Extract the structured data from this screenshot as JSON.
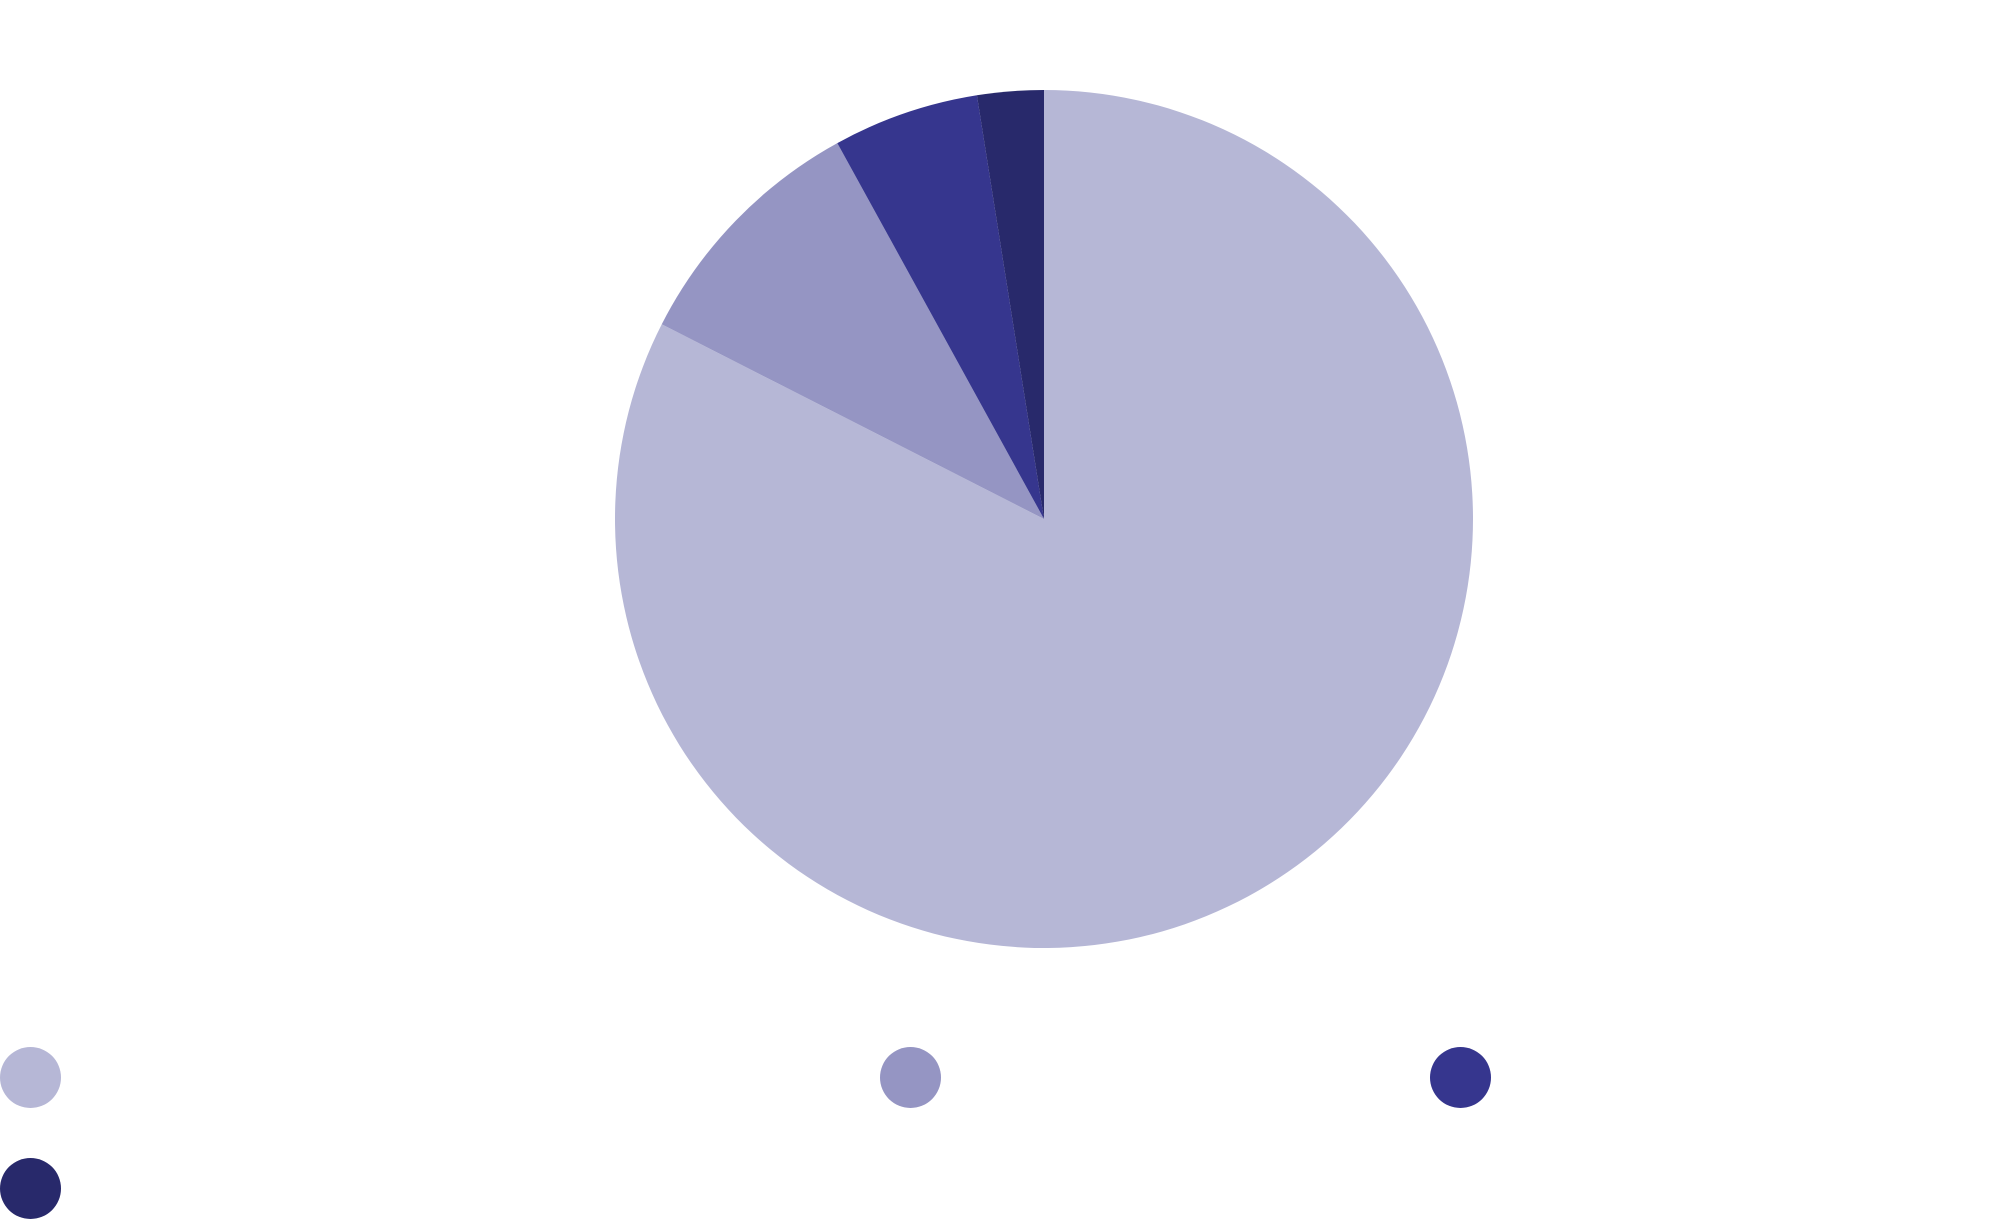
{
  "chart_data": {
    "type": "pie",
    "title": "",
    "start_angle": "12 o'clock",
    "direction": "clockwise",
    "slices": [
      {
        "name": "",
        "value": 82.5,
        "color": "#b6b7d6"
      },
      {
        "name": "",
        "value": 9.5,
        "color": "#9595c3"
      },
      {
        "name": "",
        "value": 5.5,
        "color": "#36368e"
      },
      {
        "name": "",
        "value": 2.5,
        "color": "#28296b"
      }
    ],
    "legend": {
      "placement": "bottom",
      "entries": [
        {
          "label": "",
          "color": "#b6b7d6"
        },
        {
          "label": "",
          "color": "#9595c3"
        },
        {
          "label": "",
          "color": "#36368e"
        },
        {
          "label": "",
          "color": "#28296b"
        }
      ]
    }
  }
}
